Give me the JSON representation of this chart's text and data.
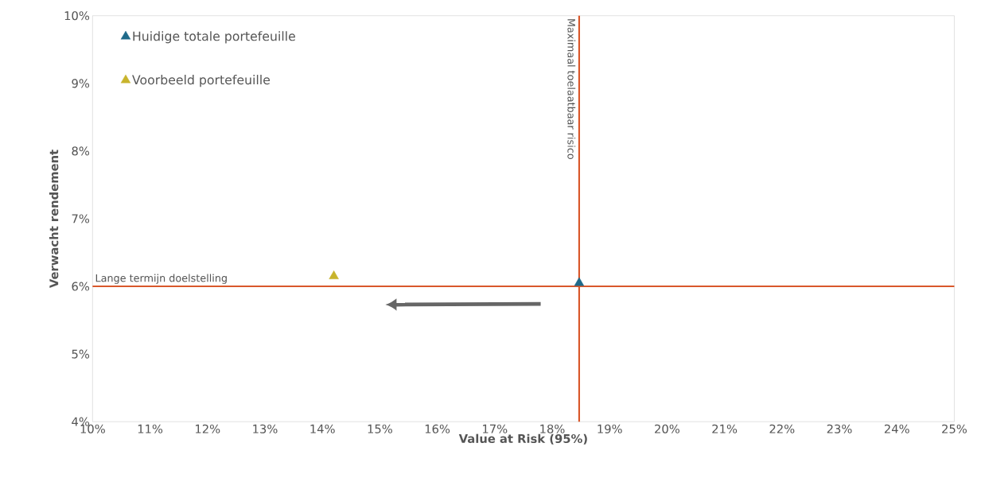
{
  "chart_data": {
    "type": "scatter",
    "xlabel": "Value at Risk (95%)",
    "ylabel": "Verwacht rendement",
    "series": [
      {
        "name": "Huidige totale portefeuille",
        "color": "#1f6a8a",
        "x": [
          18.47
        ],
        "values": [
          6.05
        ]
      },
      {
        "name": "Voorbeeld portefeuille",
        "color": "#c8b42c",
        "x": [
          14.2
        ],
        "values": [
          6.15
        ]
      }
    ],
    "marker": "triangle",
    "legend": "top left",
    "grid": false,
    "xlim": [
      10,
      25
    ],
    "ylim": [
      4,
      10
    ],
    "xticks": [
      {
        "value": 10,
        "label": "10%"
      },
      {
        "value": 11,
        "label": "11%"
      },
      {
        "value": 12,
        "label": "12%"
      },
      {
        "value": 13,
        "label": "13%"
      },
      {
        "value": 14,
        "label": "14%"
      },
      {
        "value": 15,
        "label": "15%"
      },
      {
        "value": 16,
        "label": "16%"
      },
      {
        "value": 17,
        "label": "17%"
      },
      {
        "value": 18,
        "label": "18%"
      },
      {
        "value": 19,
        "label": "19%"
      },
      {
        "value": 20,
        "label": "20%"
      },
      {
        "value": 21,
        "label": "21%"
      },
      {
        "value": 22,
        "label": "22%"
      },
      {
        "value": 23,
        "label": "23%"
      },
      {
        "value": 24,
        "label": "24%"
      },
      {
        "value": 25,
        "label": "25%"
      }
    ],
    "yticks": [
      {
        "value": 4,
        "label": "4%"
      },
      {
        "value": 5,
        "label": "5%"
      },
      {
        "value": 6,
        "label": "6%"
      },
      {
        "value": 7,
        "label": "7%"
      },
      {
        "value": 8,
        "label": "8%"
      },
      {
        "value": 9,
        "label": "9%"
      },
      {
        "value": 10,
        "label": "10%"
      }
    ],
    "ref_lines": [
      {
        "axis": "y",
        "value": 6,
        "label": "Lange termijn doelstelling",
        "color": "#d9582b"
      },
      {
        "axis": "x",
        "value": 18.47,
        "label": "Maximaal toelaatbaar risico",
        "color": "#d9582b"
      }
    ]
  }
}
